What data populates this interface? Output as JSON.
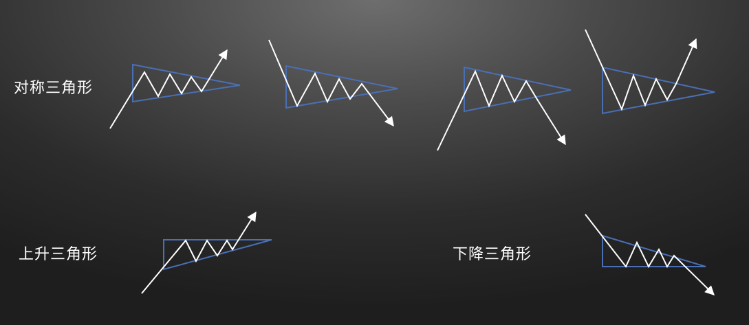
{
  "labels": {
    "symmetrical": "对称三角形",
    "ascending": "上升三角形",
    "descending": "下降三角形"
  },
  "colors": {
    "triangle_outline": "#4a6fb5",
    "price_line": "#ffffff",
    "background_light": "#6e6e6e",
    "background_dark": "#1e1e1e"
  }
}
